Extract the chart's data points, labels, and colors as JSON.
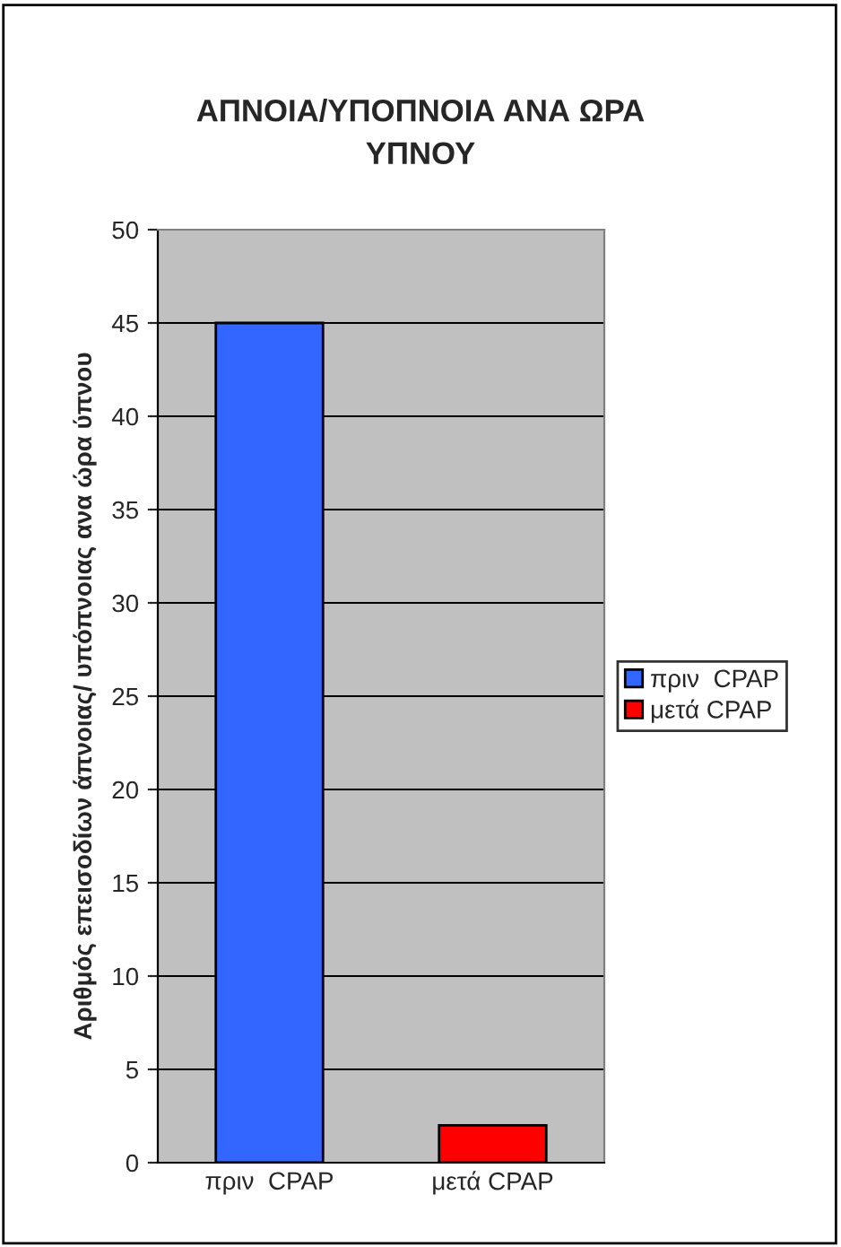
{
  "chart_data": {
    "type": "bar",
    "title": "ΑΠΝΟΙΑ/ΥΠΟΠΝΟΙΑ ΑΝΑ ΩΡΑ\nΥΠΝΟΥ",
    "ylabel": "Αριθμός επεισοδίων άπνοιας/ υπόπνοιας ανα ώρα ύπνου",
    "categories": [
      "πριν  CPAP",
      "μετά CPAP"
    ],
    "series": [
      {
        "name": "πριν  CPAP",
        "color": "#3366ff",
        "values": [
          45,
          null
        ]
      },
      {
        "name": "μετά CPAP",
        "color": "#ff0000",
        "values": [
          null,
          2
        ]
      }
    ],
    "ylim": [
      0,
      50
    ],
    "yticks": [
      0,
      5,
      10,
      15,
      20,
      25,
      30,
      35,
      40,
      45,
      50
    ],
    "grid": "y",
    "legend": "right"
  }
}
